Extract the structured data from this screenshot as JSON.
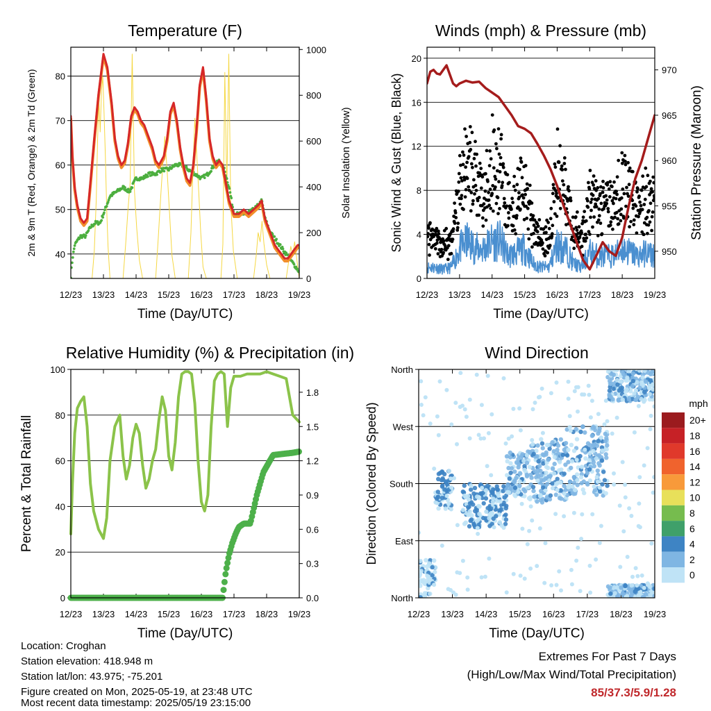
{
  "footer": {
    "location": "Location: Croghan",
    "elevation": "Station elevation: 418.948 m",
    "latlon": "Station lat/lon: 43.975; -75.201",
    "created": "Figure created on Mon, 2025-05-19, at 23:48 UTC",
    "recent": "Most recent data timestamp: 2025/05/19 23:15:00"
  },
  "extremes": {
    "title": "Extremes For Past 7 Days",
    "subtitle": "(High/Low/Max Wind/Total Precipitation)",
    "values": "85/37.3/5.9/1.28"
  },
  "chart_data": [
    {
      "id": "temperature",
      "type": "line",
      "title": "Temperature (F)",
      "xlabel": "Time (Day/UTC)",
      "ylabel": "2m & 9m T (Red, Orange) & 2m Td (Green)",
      "y2label": "Solar Insolation (Yellow)",
      "xticks": [
        "12/23",
        "13/23",
        "14/23",
        "15/23",
        "16/23",
        "17/23",
        "18/23",
        "19/23"
      ],
      "xlim": [
        0,
        7
      ],
      "ylim": [
        34.5,
        86.5
      ],
      "yticks": [
        40,
        50,
        60,
        70,
        80
      ],
      "y2lim": [
        0,
        1010
      ],
      "y2ticks": [
        0,
        200,
        400,
        600,
        800,
        1000
      ],
      "colors": {
        "t2m": "#d62728",
        "t9m": "#f28e2b",
        "td": "#4caf3f",
        "solar": "#f5d742"
      },
      "series": [
        {
          "key": "t2m",
          "x": [
            0,
            0.05,
            0.12,
            0.2,
            0.3,
            0.4,
            0.5,
            0.6,
            0.72,
            0.85,
            1.0,
            1.12,
            1.25,
            1.35,
            1.45,
            1.55,
            1.65,
            1.75,
            1.85,
            1.95,
            2.05,
            2.15,
            2.25,
            2.35,
            2.5,
            2.6,
            2.7,
            2.85,
            2.95,
            3.05,
            3.15,
            3.25,
            3.35,
            3.45,
            3.55,
            3.65,
            3.75,
            3.85,
            3.95,
            4.05,
            4.15,
            4.25,
            4.35,
            4.45,
            4.55,
            4.65,
            4.75,
            4.85,
            5.0,
            5.15,
            5.3,
            5.45,
            5.6,
            5.75,
            5.85,
            5.95,
            6.05,
            6.15,
            6.25,
            6.35,
            6.45,
            6.55,
            6.65,
            6.75,
            6.85,
            6.95,
            7.0
          ],
          "values": [
            71,
            62,
            55,
            51,
            48,
            47,
            48,
            56,
            66,
            76,
            85,
            82,
            74,
            66,
            62,
            60,
            61,
            65,
            71,
            73,
            72,
            70,
            69,
            67,
            64,
            61,
            60,
            62,
            66,
            72,
            74,
            70,
            64,
            60,
            57,
            56,
            60,
            68,
            78,
            82,
            75,
            66,
            62,
            60,
            61,
            60,
            56,
            52,
            49,
            49,
            50,
            49,
            50,
            51,
            52,
            48,
            46,
            44,
            42,
            41,
            40,
            39,
            39,
            40,
            41,
            42,
            42
          ]
        },
        {
          "key": "td",
          "x": [
            0,
            0.05,
            0.12,
            0.2,
            0.3,
            0.45,
            0.6,
            0.75,
            0.9,
            1.05,
            1.2,
            1.4,
            1.6,
            1.8,
            2.0,
            2.2,
            2.4,
            2.6,
            2.8,
            3.0,
            3.2,
            3.4,
            3.6,
            3.8,
            4.0,
            4.2,
            4.4,
            4.55,
            4.7,
            4.85,
            5.0,
            5.2,
            5.4,
            5.6,
            5.75,
            5.85,
            5.95,
            6.1,
            6.3,
            6.5,
            6.7,
            6.9,
            7.0
          ],
          "values": [
            35,
            39,
            42,
            43,
            44,
            44,
            46,
            47,
            47,
            50,
            53,
            54,
            55,
            54,
            57,
            57,
            58,
            58,
            59,
            59,
            60,
            60,
            59,
            58,
            57,
            58,
            60,
            61,
            59,
            55,
            49,
            49,
            49,
            50,
            51,
            52,
            48,
            45,
            43,
            41,
            39,
            37,
            36
          ]
        },
        {
          "key": "solar",
          "x": [
            0,
            0.65,
            0.72,
            0.78,
            0.82,
            0.86,
            0.9,
            0.94,
            0.98,
            1.02,
            1.06,
            1.1,
            1.14,
            1.2,
            1.3,
            1.6,
            1.68,
            1.75,
            1.82,
            1.88,
            1.95,
            2.02,
            2.1,
            2.2,
            2.6,
            2.68,
            2.75,
            2.82,
            2.88,
            2.95,
            3.02,
            3.1,
            3.2,
            3.6,
            3.68,
            3.74,
            3.8,
            3.86,
            3.92,
            3.98,
            4.05,
            4.15,
            4.6,
            4.66,
            4.72,
            4.78,
            4.84,
            4.9,
            4.98,
            5.1,
            5.6,
            5.68,
            5.74,
            5.8,
            5.86,
            5.92,
            6.0,
            6.1,
            6.6,
            6.68,
            6.74,
            6.8,
            6.86,
            6.92,
            7.0
          ],
          "values": [
            0,
            0,
            120,
            350,
            600,
            780,
            640,
            820,
            880,
            720,
            530,
            300,
            140,
            0,
            0,
            0,
            150,
            300,
            420,
            980,
            380,
            220,
            80,
            0,
            0,
            180,
            350,
            500,
            620,
            470,
            300,
            100,
            0,
            0,
            200,
            470,
            700,
            540,
            380,
            200,
            50,
            0,
            0,
            150,
            900,
            380,
            980,
            330,
            120,
            0,
            0,
            100,
            200,
            160,
            250,
            150,
            60,
            0,
            0,
            80,
            140,
            100,
            160,
            90,
            0
          ]
        }
      ]
    },
    {
      "id": "winds",
      "type": "scatter",
      "title": "Winds (mph) & Pressure (mb)",
      "xlabel": "Time (Day/UTC)",
      "ylabel": "Sonic Wind & Gust (Blue, Black)",
      "y2label": "Station Pressure (Maroon)",
      "xticks": [
        "12/23",
        "13/23",
        "14/23",
        "15/23",
        "16/23",
        "17/23",
        "18/23",
        "19/23"
      ],
      "xlim": [
        0,
        7
      ],
      "ylim": [
        0,
        21
      ],
      "yticks": [
        0,
        4,
        8,
        12,
        16,
        20
      ],
      "y2lim": [
        947,
        972.5
      ],
      "y2ticks": [
        950,
        955,
        960,
        965,
        970
      ],
      "colors": {
        "wind": "#4a8fd0",
        "gust": "#000000",
        "pressure": "#a51c1c"
      },
      "series": [
        {
          "key": "pressure",
          "x": [
            0,
            0.1,
            0.2,
            0.3,
            0.4,
            0.5,
            0.6,
            0.7,
            0.8,
            0.9,
            1.0,
            1.2,
            1.4,
            1.6,
            1.8,
            2.0,
            2.2,
            2.4,
            2.6,
            2.8,
            3.0,
            3.2,
            3.4,
            3.6,
            3.8,
            4.0,
            4.2,
            4.4,
            4.6,
            4.8,
            5.0,
            5.2,
            5.4,
            5.6,
            5.8,
            6.0,
            6.2,
            6.4,
            6.6,
            6.8,
            7.0
          ],
          "values": [
            968.5,
            969.8,
            970,
            969.6,
            969.5,
            970,
            970.5,
            969.5,
            968.5,
            968.2,
            968.5,
            968.8,
            968.6,
            968.7,
            968,
            967.5,
            967,
            966,
            965,
            963.8,
            963.5,
            963,
            961.8,
            960.5,
            959,
            957.2,
            955,
            953,
            951,
            949,
            948,
            949.5,
            951,
            950,
            949.5,
            951.5,
            955,
            958,
            960,
            962.5,
            965
          ]
        },
        {
          "key": "wind_envelope",
          "x": [
            0,
            0.25,
            0.5,
            0.75,
            1.0,
            1.25,
            1.5,
            1.75,
            2.0,
            2.25,
            2.5,
            2.75,
            3.0,
            3.25,
            3.5,
            3.75,
            4.0,
            4.25,
            4.5,
            4.75,
            5.0,
            5.25,
            5.5,
            5.75,
            6.0,
            6.25,
            6.5,
            6.75,
            7.0
          ],
          "values": [
            1.5,
            1.5,
            1.2,
            1.5,
            4,
            5,
            4,
            4,
            5,
            5,
            3,
            3.5,
            4,
            2,
            1.5,
            1.5,
            4.5,
            4,
            2,
            1.5,
            3.5,
            3,
            3,
            3,
            4,
            3.5,
            3,
            3.5,
            3
          ]
        }
      ]
    },
    {
      "id": "humidity",
      "type": "line",
      "title": "Relative Humidity (%) & Precipitation (in)",
      "xlabel": "Time (Day/UTC)",
      "ylabel": "Percent & Total Rainfall",
      "xticks": [
        "12/23",
        "13/23",
        "14/23",
        "15/23",
        "16/23",
        "17/23",
        "18/23",
        "19/23"
      ],
      "xlim": [
        0,
        7
      ],
      "ylim": [
        0,
        100
      ],
      "yticks": [
        0,
        20,
        40,
        60,
        80,
        100
      ],
      "y2lim": [
        0,
        2.0
      ],
      "y2ticks": [
        "0.0",
        "0.3",
        "0.6",
        "0.9",
        "1.2",
        "1.5",
        "1.8"
      ],
      "colors": {
        "rh": "#8bc34a",
        "precip": "#4db04a"
      },
      "series": [
        {
          "key": "rh",
          "x": [
            0,
            0.05,
            0.12,
            0.2,
            0.3,
            0.4,
            0.5,
            0.6,
            0.7,
            0.85,
            1.0,
            1.1,
            1.2,
            1.35,
            1.5,
            1.6,
            1.7,
            1.8,
            1.9,
            2.0,
            2.1,
            2.2,
            2.3,
            2.4,
            2.5,
            2.6,
            2.7,
            2.8,
            2.9,
            3.0,
            3.1,
            3.2,
            3.3,
            3.4,
            3.5,
            3.6,
            3.7,
            3.8,
            3.9,
            4.0,
            4.1,
            4.2,
            4.3,
            4.4,
            4.5,
            4.6,
            4.7,
            4.8,
            4.9,
            5.0,
            5.2,
            5.4,
            5.6,
            5.8,
            6.0,
            6.2,
            6.4,
            6.6,
            6.8,
            7.0
          ],
          "values": [
            28,
            50,
            72,
            83,
            86,
            88,
            75,
            50,
            38,
            30,
            26,
            35,
            60,
            75,
            80,
            62,
            52,
            58,
            70,
            76,
            72,
            58,
            48,
            52,
            60,
            65,
            78,
            88,
            82,
            62,
            56,
            68,
            88,
            98,
            99,
            99,
            98,
            85,
            60,
            42,
            38,
            45,
            75,
            95,
            98,
            99,
            98,
            75,
            92,
            97,
            97,
            98,
            98,
            98,
            99,
            98,
            97,
            96,
            80,
            77
          ]
        },
        {
          "key": "precip",
          "x": [
            0,
            0.5,
            1.0,
            1.5,
            2.0,
            2.5,
            3.0,
            3.5,
            4.0,
            4.5,
            4.65,
            4.75,
            4.85,
            4.95,
            5.05,
            5.15,
            5.3,
            5.5,
            5.7,
            5.9,
            6.0,
            6.1,
            6.2,
            6.5,
            6.8,
            7.0
          ],
          "values": [
            0,
            0,
            0,
            0,
            0,
            0,
            0,
            0,
            0,
            0,
            0,
            0.23,
            0.38,
            0.48,
            0.56,
            0.62,
            0.65,
            0.65,
            0.9,
            1.1,
            1.15,
            1.2,
            1.25,
            1.26,
            1.27,
            1.28
          ]
        }
      ]
    },
    {
      "id": "wind-direction",
      "type": "scatter",
      "title": "Wind Direction",
      "xlabel": "Time (Day/UTC)",
      "ylabel": "Direction (Colored By Speed)",
      "xticks": [
        "12/23",
        "13/23",
        "14/23",
        "15/23",
        "16/23",
        "17/23",
        "18/23",
        "19/23"
      ],
      "xlim": [
        0,
        7
      ],
      "ylim": [
        0,
        360
      ],
      "ytick_labels": [
        "North",
        "East",
        "South",
        "West",
        "North"
      ],
      "legend": {
        "title": "mph",
        "labels": [
          "20+",
          "18",
          "16",
          "14",
          "12",
          "10",
          "8",
          "6",
          "4",
          "2",
          "0"
        ],
        "colors": [
          "#9b1b1e",
          "#c62126",
          "#e0392b",
          "#f0632d",
          "#f89a3a",
          "#e8e05a",
          "#76bc4e",
          "#3fa06a",
          "#3e84c4",
          "#7fb6e3",
          "#bfe3f6"
        ],
        "placement": "right"
      },
      "clusters": [
        {
          "x0": 0,
          "x1": 0.5,
          "dir0": 0,
          "dir1": 60,
          "speed": "0"
        },
        {
          "x0": 0.5,
          "x1": 1.0,
          "dir0": 140,
          "dir1": 200,
          "speed": "4"
        },
        {
          "x0": 1.3,
          "x1": 2.6,
          "dir0": 110,
          "dir1": 180,
          "speed": "4"
        },
        {
          "x0": 2.6,
          "x1": 3.2,
          "dir0": 160,
          "dir1": 230,
          "speed": "2"
        },
        {
          "x0": 3.2,
          "x1": 4.4,
          "dir0": 150,
          "dir1": 250,
          "speed": "2"
        },
        {
          "x0": 4.4,
          "x1": 5.6,
          "dir0": 160,
          "dir1": 270,
          "speed": "2"
        },
        {
          "x0": 5.6,
          "x1": 7.0,
          "dir0": 310,
          "dir1": 360,
          "speed": "2"
        },
        {
          "x0": 5.6,
          "x1": 7.0,
          "dir0": 0,
          "dir1": 20,
          "speed": "2"
        }
      ]
    }
  ]
}
